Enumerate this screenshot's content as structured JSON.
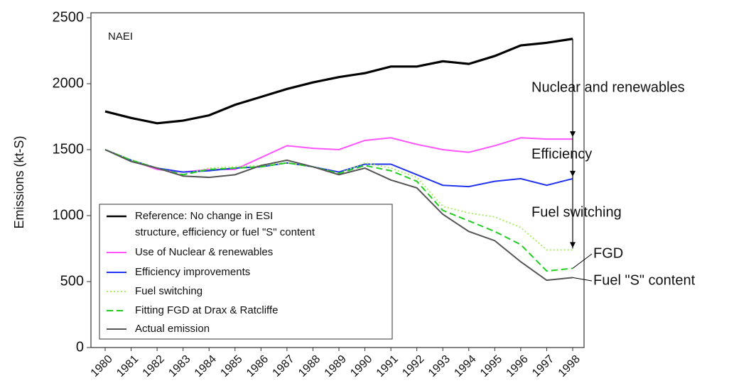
{
  "chart_data": {
    "type": "line",
    "ylabel": "Emissions (kt-S)",
    "categories": [
      "1980",
      "1981",
      "1982",
      "1983",
      "1984",
      "1985",
      "1986",
      "1987",
      "1988",
      "1989",
      "1990",
      "1991",
      "1992",
      "1993",
      "1994",
      "1995",
      "1996",
      "1997",
      "1998"
    ],
    "ylim": [
      0,
      2500
    ],
    "yticks": [
      0,
      500,
      1000,
      1500,
      2000,
      2500
    ],
    "series": [
      {
        "name": "Reference: No change in ESI\nstructure, efficiency or fuel \"S\" content",
        "color": "#000000",
        "linestyle": "solid",
        "values": [
          1790,
          1740,
          1700,
          1720,
          1760,
          1840,
          1900,
          1960,
          2010,
          2050,
          2080,
          2130,
          2130,
          2170,
          2150,
          2210,
          2290,
          2310,
          2340
        ]
      },
      {
        "name": "Use of Nuclear & renewables",
        "color": "#ff55ff",
        "linestyle": "solid",
        "values": [
          1500,
          1420,
          1350,
          1330,
          1350,
          1350,
          1440,
          1530,
          1510,
          1500,
          1570,
          1590,
          1540,
          1500,
          1480,
          1530,
          1590,
          1580,
          1580
        ]
      },
      {
        "name": "Efficiency improvements",
        "color": "#2233ee",
        "linestyle": "solid",
        "values": [
          1500,
          1420,
          1360,
          1330,
          1340,
          1360,
          1370,
          1400,
          1370,
          1330,
          1390,
          1390,
          1310,
          1230,
          1220,
          1260,
          1280,
          1230,
          1280
        ]
      },
      {
        "name": "Fuel switching",
        "color": "#aaee66",
        "linestyle": "dotted",
        "values": [
          1500,
          1420,
          1360,
          1310,
          1360,
          1370,
          1380,
          1400,
          1370,
          1320,
          1400,
          1360,
          1290,
          1070,
          1020,
          990,
          910,
          740,
          740
        ]
      },
      {
        "name": "Fitting FGD at Drax & Ratcliffe",
        "color": "#22cc22",
        "linestyle": "dashed",
        "values": [
          1500,
          1420,
          1360,
          1310,
          1350,
          1360,
          1370,
          1400,
          1370,
          1320,
          1380,
          1340,
          1260,
          1040,
          960,
          880,
          780,
          580,
          600
        ]
      },
      {
        "name": "Actual emission",
        "color": "#555555",
        "linestyle": "solid",
        "values": [
          1500,
          1410,
          1360,
          1300,
          1290,
          1310,
          1380,
          1420,
          1370,
          1310,
          1360,
          1270,
          1210,
          1010,
          880,
          810,
          650,
          510,
          530
        ]
      }
    ],
    "annotations": [
      "NAEI",
      "Nuclear and renewables",
      "Efficiency",
      "Fuel switching",
      "FGD",
      "Fuel \"S\" content"
    ]
  }
}
